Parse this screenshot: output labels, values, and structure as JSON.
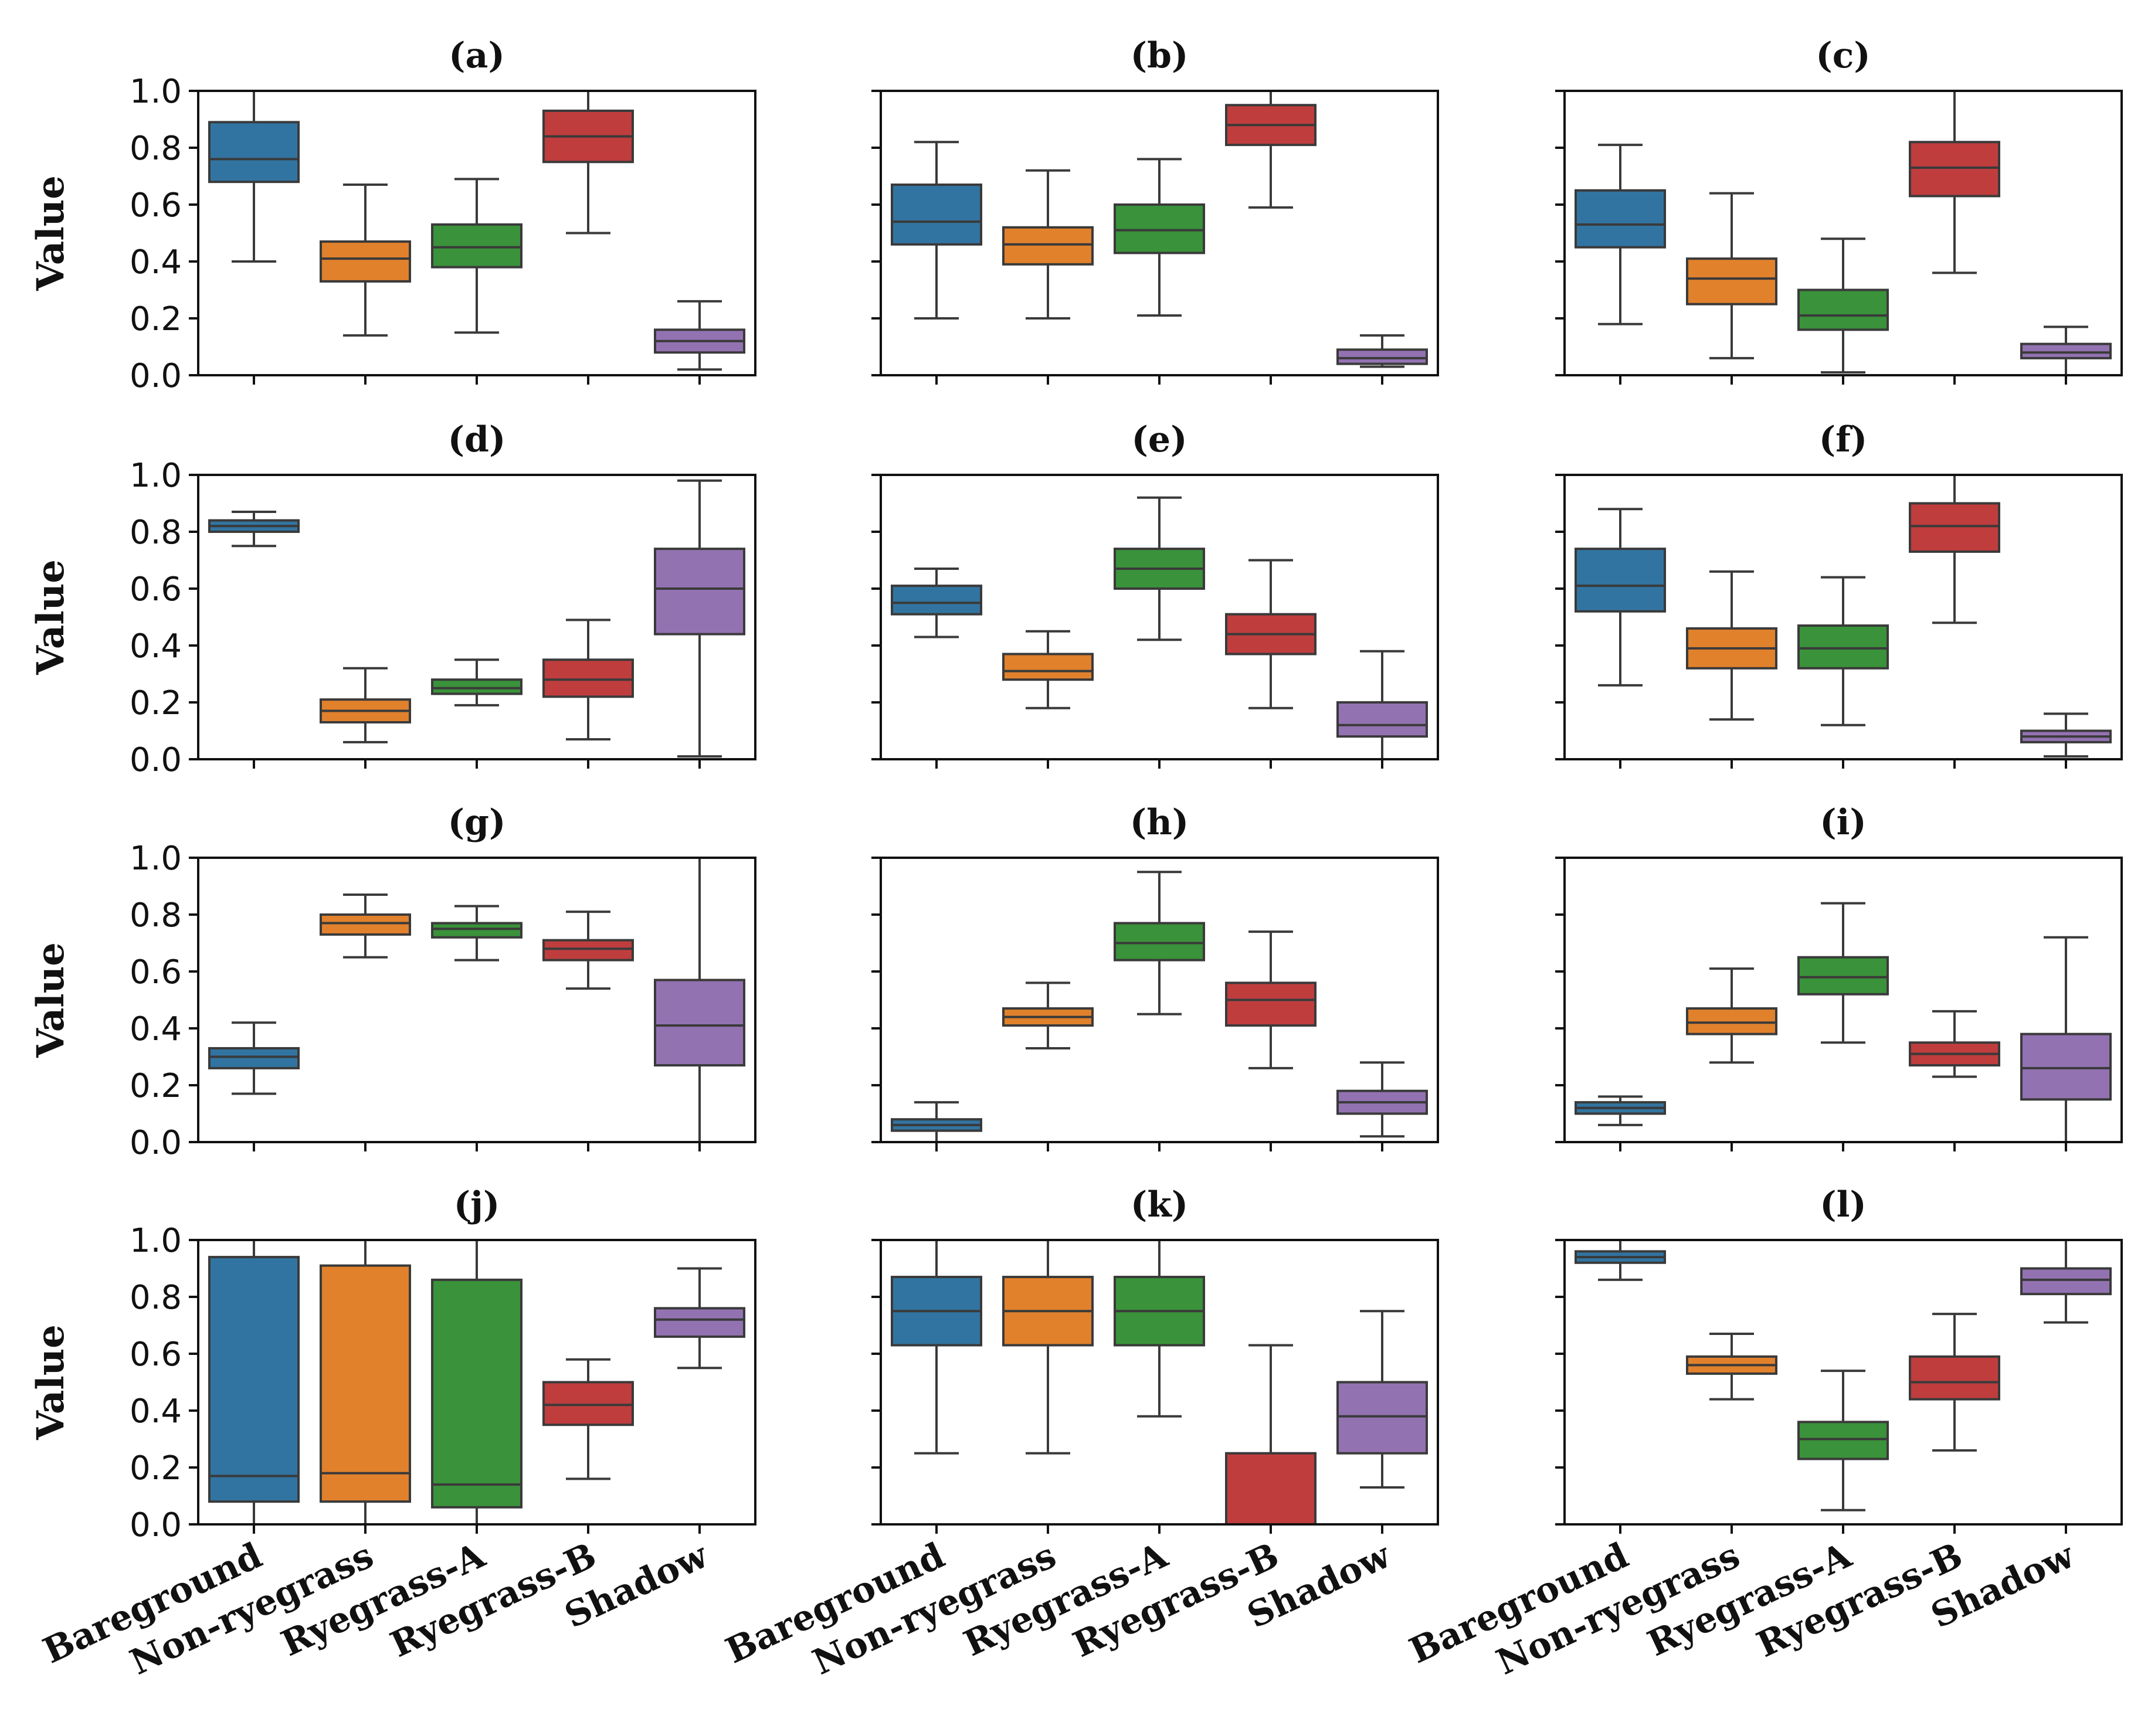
{
  "chart_data": {
    "type": "boxplot",
    "ylabel": "Value",
    "ylim": [
      0.0,
      1.0
    ],
    "yticks": [
      "0.0",
      "0.2",
      "0.4",
      "0.6",
      "0.8",
      "1.0"
    ],
    "categories": [
      "Bareground",
      "Non-ryegrass",
      "Ryegrass-A",
      "Ryegrass-B",
      "Shadow"
    ],
    "colors": [
      "#3274a1",
      "#e1812c",
      "#3a923a",
      "#c03d3e",
      "#9372b2"
    ],
    "panels": [
      {
        "title": "(a)",
        "boxes": [
          {
            "min": 0.4,
            "q1": 0.68,
            "median": 0.76,
            "q3": 0.89,
            "max": 1.0
          },
          {
            "min": 0.14,
            "q1": 0.33,
            "median": 0.41,
            "q3": 0.47,
            "max": 0.67
          },
          {
            "min": 0.15,
            "q1": 0.38,
            "median": 0.45,
            "q3": 0.53,
            "max": 0.69
          },
          {
            "min": 0.5,
            "q1": 0.75,
            "median": 0.84,
            "q3": 0.93,
            "max": 1.0
          },
          {
            "min": 0.02,
            "q1": 0.08,
            "median": 0.12,
            "q3": 0.16,
            "max": 0.26
          }
        ]
      },
      {
        "title": "(b)",
        "boxes": [
          {
            "min": 0.2,
            "q1": 0.46,
            "median": 0.54,
            "q3": 0.67,
            "max": 0.82
          },
          {
            "min": 0.2,
            "q1": 0.39,
            "median": 0.46,
            "q3": 0.52,
            "max": 0.72
          },
          {
            "min": 0.21,
            "q1": 0.43,
            "median": 0.51,
            "q3": 0.6,
            "max": 0.76
          },
          {
            "min": 0.59,
            "q1": 0.81,
            "median": 0.88,
            "q3": 0.95,
            "max": 1.0
          },
          {
            "min": 0.03,
            "q1": 0.04,
            "median": 0.06,
            "q3": 0.09,
            "max": 0.14
          }
        ]
      },
      {
        "title": "(c)",
        "boxes": [
          {
            "min": 0.18,
            "q1": 0.45,
            "median": 0.53,
            "q3": 0.65,
            "max": 0.81
          },
          {
            "min": 0.06,
            "q1": 0.25,
            "median": 0.34,
            "q3": 0.41,
            "max": 0.64
          },
          {
            "min": 0.01,
            "q1": 0.16,
            "median": 0.21,
            "q3": 0.3,
            "max": 0.48
          },
          {
            "min": 0.36,
            "q1": 0.63,
            "median": 0.73,
            "q3": 0.82,
            "max": 1.0
          },
          {
            "min": 0.0,
            "q1": 0.06,
            "median": 0.08,
            "q3": 0.11,
            "max": 0.17
          }
        ]
      },
      {
        "title": "(d)",
        "boxes": [
          {
            "min": 0.75,
            "q1": 0.8,
            "median": 0.82,
            "q3": 0.84,
            "max": 0.87
          },
          {
            "min": 0.06,
            "q1": 0.13,
            "median": 0.17,
            "q3": 0.21,
            "max": 0.32
          },
          {
            "min": 0.19,
            "q1": 0.23,
            "median": 0.25,
            "q3": 0.28,
            "max": 0.35
          },
          {
            "min": 0.07,
            "q1": 0.22,
            "median": 0.28,
            "q3": 0.35,
            "max": 0.49
          },
          {
            "min": 0.01,
            "q1": 0.44,
            "median": 0.6,
            "q3": 0.74,
            "max": 0.98
          }
        ]
      },
      {
        "title": "(e)",
        "boxes": [
          {
            "min": 0.43,
            "q1": 0.51,
            "median": 0.55,
            "q3": 0.61,
            "max": 0.67
          },
          {
            "min": 0.18,
            "q1": 0.28,
            "median": 0.31,
            "q3": 0.37,
            "max": 0.45
          },
          {
            "min": 0.42,
            "q1": 0.6,
            "median": 0.67,
            "q3": 0.74,
            "max": 0.92
          },
          {
            "min": 0.18,
            "q1": 0.37,
            "median": 0.44,
            "q3": 0.51,
            "max": 0.7
          },
          {
            "min": 0.0,
            "q1": 0.08,
            "median": 0.12,
            "q3": 0.2,
            "max": 0.38
          }
        ]
      },
      {
        "title": "(f)",
        "boxes": [
          {
            "min": 0.26,
            "q1": 0.52,
            "median": 0.61,
            "q3": 0.74,
            "max": 0.88
          },
          {
            "min": 0.14,
            "q1": 0.32,
            "median": 0.39,
            "q3": 0.46,
            "max": 0.66
          },
          {
            "min": 0.12,
            "q1": 0.32,
            "median": 0.39,
            "q3": 0.47,
            "max": 0.64
          },
          {
            "min": 0.48,
            "q1": 0.73,
            "median": 0.82,
            "q3": 0.9,
            "max": 1.0
          },
          {
            "min": 0.01,
            "q1": 0.06,
            "median": 0.08,
            "q3": 0.1,
            "max": 0.16
          }
        ]
      },
      {
        "title": "(g)",
        "boxes": [
          {
            "min": 0.17,
            "q1": 0.26,
            "median": 0.3,
            "q3": 0.33,
            "max": 0.42
          },
          {
            "min": 0.65,
            "q1": 0.73,
            "median": 0.77,
            "q3": 0.8,
            "max": 0.87
          },
          {
            "min": 0.64,
            "q1": 0.72,
            "median": 0.75,
            "q3": 0.77,
            "max": 0.83
          },
          {
            "min": 0.54,
            "q1": 0.64,
            "median": 0.68,
            "q3": 0.71,
            "max": 0.81
          },
          {
            "min": 0.0,
            "q1": 0.27,
            "median": 0.41,
            "q3": 0.57,
            "max": 1.0
          }
        ]
      },
      {
        "title": "(h)",
        "boxes": [
          {
            "min": 0.0,
            "q1": 0.04,
            "median": 0.06,
            "q3": 0.08,
            "max": 0.14
          },
          {
            "min": 0.33,
            "q1": 0.41,
            "median": 0.44,
            "q3": 0.47,
            "max": 0.56
          },
          {
            "min": 0.45,
            "q1": 0.64,
            "median": 0.7,
            "q3": 0.77,
            "max": 0.95
          },
          {
            "min": 0.26,
            "q1": 0.41,
            "median": 0.5,
            "q3": 0.56,
            "max": 0.74
          },
          {
            "min": 0.02,
            "q1": 0.1,
            "median": 0.14,
            "q3": 0.18,
            "max": 0.28
          }
        ]
      },
      {
        "title": "(i)",
        "boxes": [
          {
            "min": 0.06,
            "q1": 0.1,
            "median": 0.12,
            "q3": 0.14,
            "max": 0.16
          },
          {
            "min": 0.28,
            "q1": 0.38,
            "median": 0.42,
            "q3": 0.47,
            "max": 0.61
          },
          {
            "min": 0.35,
            "q1": 0.52,
            "median": 0.58,
            "q3": 0.65,
            "max": 0.84
          },
          {
            "min": 0.23,
            "q1": 0.27,
            "median": 0.31,
            "q3": 0.35,
            "max": 0.46
          },
          {
            "min": 0.0,
            "q1": 0.15,
            "median": 0.26,
            "q3": 0.38,
            "max": 0.72
          }
        ]
      },
      {
        "title": "(j)",
        "boxes": [
          {
            "min": 0.0,
            "q1": 0.08,
            "median": 0.17,
            "q3": 0.94,
            "max": 1.0
          },
          {
            "min": 0.0,
            "q1": 0.08,
            "median": 0.18,
            "q3": 0.91,
            "max": 1.0
          },
          {
            "min": 0.0,
            "q1": 0.06,
            "median": 0.14,
            "q3": 0.86,
            "max": 1.0
          },
          {
            "min": 0.16,
            "q1": 0.35,
            "median": 0.42,
            "q3": 0.5,
            "max": 0.58
          },
          {
            "min": 0.55,
            "q1": 0.66,
            "median": 0.72,
            "q3": 0.76,
            "max": 0.9
          }
        ]
      },
      {
        "title": "(k)",
        "boxes": [
          {
            "min": 0.25,
            "q1": 0.63,
            "median": 0.75,
            "q3": 0.87,
            "max": 1.0
          },
          {
            "min": 0.25,
            "q1": 0.63,
            "median": 0.75,
            "q3": 0.87,
            "max": 1.0
          },
          {
            "min": 0.38,
            "q1": 0.63,
            "median": 0.75,
            "q3": 0.87,
            "max": 1.0
          },
          {
            "min": 0.0,
            "q1": 0.0,
            "median": 0.0,
            "q3": 0.25,
            "max": 0.63
          },
          {
            "min": 0.13,
            "q1": 0.25,
            "median": 0.38,
            "q3": 0.5,
            "max": 0.75
          }
        ]
      },
      {
        "title": "(l)",
        "boxes": [
          {
            "min": 0.86,
            "q1": 0.92,
            "median": 0.94,
            "q3": 0.96,
            "max": 1.0
          },
          {
            "min": 0.44,
            "q1": 0.53,
            "median": 0.56,
            "q3": 0.59,
            "max": 0.67
          },
          {
            "min": 0.05,
            "q1": 0.23,
            "median": 0.3,
            "q3": 0.36,
            "max": 0.54
          },
          {
            "min": 0.26,
            "q1": 0.44,
            "median": 0.5,
            "q3": 0.59,
            "max": 0.74
          },
          {
            "min": 0.71,
            "q1": 0.81,
            "median": 0.86,
            "q3": 0.9,
            "max": 1.0
          }
        ]
      }
    ]
  }
}
